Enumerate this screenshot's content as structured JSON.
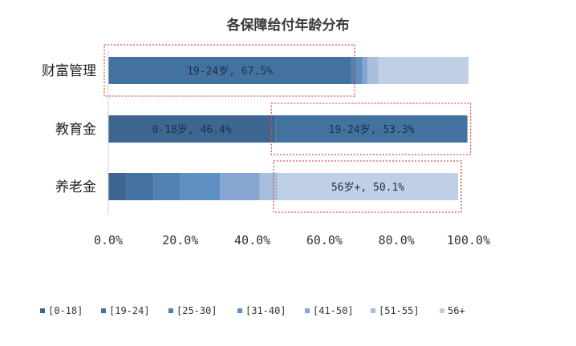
{
  "chart_data": {
    "type": "bar",
    "orientation": "horizontal",
    "stacked": true,
    "title": "各保障给付年龄分布",
    "categories": [
      "财富管理",
      "教育金",
      "养老金"
    ],
    "series": [
      {
        "name": "[0-18]",
        "color": "#3d6691",
        "values": [
          0.0,
          46.4,
          5.0
        ]
      },
      {
        "name": "[19-24]",
        "color": "#4472a0",
        "values": [
          67.5,
          53.3,
          7.5
        ]
      },
      {
        "name": "[25-30]",
        "color": "#5182b2",
        "values": [
          1.5,
          0.0,
          7.5
        ]
      },
      {
        "name": "[31-40]",
        "color": "#5f8fc3",
        "values": [
          1.5,
          0.0,
          11.0
        ]
      },
      {
        "name": "[41-50]",
        "color": "#86a6cf",
        "values": [
          1.5,
          0.0,
          11.0
        ]
      },
      {
        "name": "[51-55]",
        "color": "#a8bedd",
        "values": [
          3.0,
          0.0,
          5.0
        ]
      },
      {
        "name": "56+",
        "color": "#bfcfe6",
        "values": [
          25.0,
          0.0,
          50.1
        ]
      }
    ],
    "data_labels": [
      {
        "category": "财富管理",
        "series": "[19-24]",
        "text": "19-24岁, 67.5%"
      },
      {
        "category": "教育金",
        "series": "[0-18]",
        "text": "0-18岁, 46.4%"
      },
      {
        "category": "教育金",
        "series": "[19-24]",
        "text": "19-24岁, 53.3%"
      },
      {
        "category": "养老金",
        "series": "56+",
        "text": "56岁+, 50.1%"
      }
    ],
    "highlight_boxes": [
      {
        "category": "财富管理",
        "series": "[19-24]"
      },
      {
        "category": "教育金",
        "series": "[19-24]"
      },
      {
        "category": "养老金",
        "series": "56+"
      }
    ],
    "highlight_color": "#d9534f",
    "xlim": [
      0,
      100
    ],
    "xticks": [
      "0.0%",
      "20.0%",
      "40.0%",
      "60.0%",
      "80.0%",
      "100.0%"
    ],
    "xlabel": "",
    "ylabel": "",
    "grid": false,
    "legend_position": "bottom"
  }
}
